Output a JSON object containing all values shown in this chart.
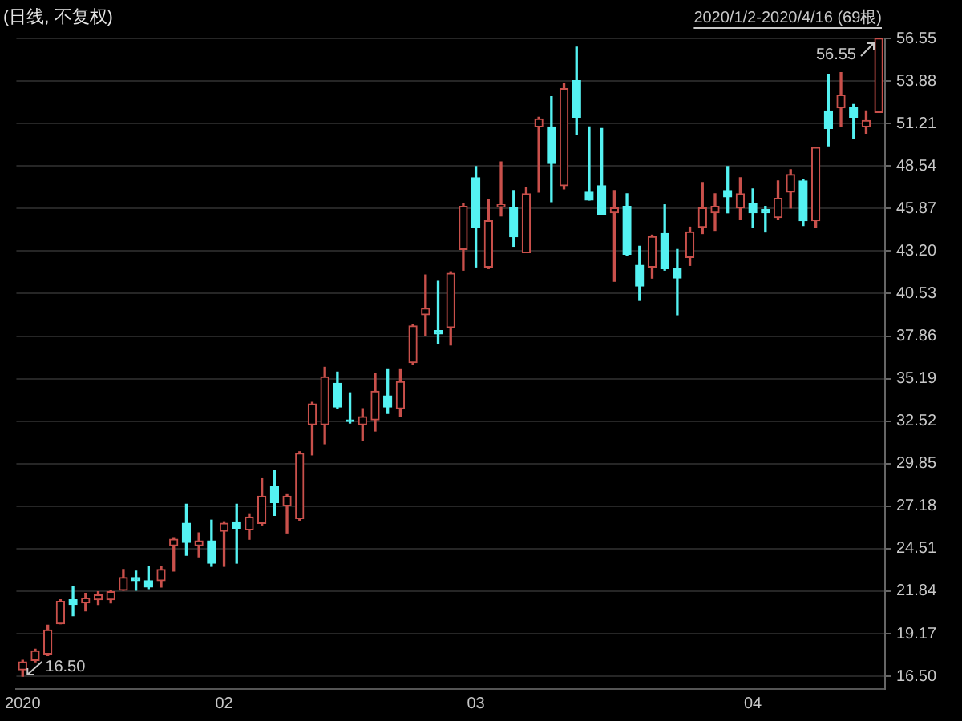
{
  "chart_data": {
    "type": "candlestick",
    "title": "(日线, 不复权)",
    "subtitle": "2020/1/2-2020/4/16 (69根)",
    "categories": [
      "2020",
      null,
      null,
      null,
      null,
      null,
      null,
      null,
      null,
      null,
      null,
      null,
      null,
      null,
      null,
      null,
      "02",
      null,
      null,
      null,
      null,
      null,
      null,
      null,
      null,
      null,
      null,
      null,
      null,
      null,
      null,
      null,
      null,
      null,
      null,
      null,
      "03",
      null,
      null,
      null,
      null,
      null,
      null,
      null,
      null,
      null,
      null,
      null,
      null,
      null,
      null,
      null,
      null,
      null,
      null,
      null,
      null,
      null,
      "04",
      null,
      null,
      null,
      null,
      null,
      null,
      null,
      null,
      null,
      null
    ],
    "ohlc": [
      [
        16.9,
        17.5,
        16.5,
        17.4
      ],
      [
        17.5,
        18.2,
        17.4,
        18.1
      ],
      [
        17.9,
        19.7,
        17.8,
        19.4
      ],
      [
        19.8,
        21.3,
        19.8,
        21.2
      ],
      [
        21.3,
        22.1,
        20.3,
        21.0
      ],
      [
        21.1,
        21.7,
        20.6,
        21.4
      ],
      [
        21.3,
        21.8,
        21.0,
        21.6
      ],
      [
        21.3,
        21.9,
        21.1,
        21.8
      ],
      [
        21.9,
        23.2,
        21.9,
        22.7
      ],
      [
        22.7,
        23.1,
        21.9,
        22.5
      ],
      [
        22.5,
        23.4,
        22.0,
        22.1
      ],
      [
        22.5,
        23.4,
        22.1,
        23.2
      ],
      [
        24.7,
        25.2,
        23.1,
        25.1
      ],
      [
        26.1,
        27.3,
        24.1,
        24.9
      ],
      [
        24.7,
        25.5,
        24.0,
        25.0
      ],
      [
        25.0,
        26.3,
        23.4,
        23.6
      ],
      [
        25.6,
        26.2,
        23.4,
        26.1
      ],
      [
        26.2,
        27.3,
        23.6,
        25.8
      ],
      [
        25.7,
        26.7,
        25.1,
        26.5
      ],
      [
        26.1,
        28.9,
        26.0,
        27.8
      ],
      [
        28.4,
        29.4,
        26.6,
        27.4
      ],
      [
        27.2,
        27.9,
        25.5,
        27.8
      ],
      [
        26.4,
        30.6,
        26.3,
        30.5
      ],
      [
        32.3,
        33.7,
        30.4,
        33.6
      ],
      [
        32.3,
        35.9,
        31.1,
        35.3
      ],
      [
        34.9,
        35.6,
        33.3,
        33.4
      ],
      [
        32.6,
        34.3,
        32.4,
        32.5
      ],
      [
        32.3,
        33.3,
        31.3,
        32.8
      ],
      [
        32.6,
        35.5,
        31.9,
        34.4
      ],
      [
        34.1,
        35.8,
        33.0,
        33.4
      ],
      [
        33.3,
        35.8,
        32.8,
        35.0
      ],
      [
        36.2,
        38.6,
        36.1,
        38.5
      ],
      [
        39.2,
        41.7,
        37.9,
        39.6
      ],
      [
        38.2,
        41.3,
        37.4,
        38.0
      ],
      [
        38.4,
        41.9,
        37.3,
        41.8
      ],
      [
        43.3,
        46.2,
        42.0,
        46.0
      ],
      [
        47.8,
        48.5,
        42.2,
        44.7
      ],
      [
        42.2,
        46.4,
        42.1,
        45.1
      ],
      [
        46.0,
        48.8,
        45.4,
        46.1
      ],
      [
        45.9,
        47.0,
        43.5,
        44.1
      ],
      [
        43.1,
        47.2,
        43.1,
        46.8
      ],
      [
        51.0,
        51.6,
        46.9,
        51.5
      ],
      [
        51.0,
        52.9,
        46.3,
        48.7
      ],
      [
        47.3,
        53.7,
        47.1,
        53.4
      ],
      [
        53.9,
        56.0,
        50.5,
        51.6
      ],
      [
        46.9,
        51.0,
        46.4,
        46.4
      ],
      [
        47.3,
        50.9,
        45.5,
        45.5
      ],
      [
        45.6,
        47.0,
        41.3,
        45.9
      ],
      [
        46.0,
        46.8,
        42.9,
        43.0
      ],
      [
        42.3,
        43.5,
        40.1,
        41.0
      ],
      [
        42.2,
        44.2,
        41.5,
        44.1
      ],
      [
        44.3,
        46.1,
        42.0,
        42.1
      ],
      [
        42.1,
        43.3,
        39.2,
        41.5
      ],
      [
        42.8,
        44.7,
        42.3,
        44.4
      ],
      [
        44.7,
        47.5,
        44.3,
        45.9
      ],
      [
        45.6,
        46.8,
        44.5,
        46.0
      ],
      [
        47.0,
        48.5,
        45.6,
        46.6
      ],
      [
        45.9,
        47.8,
        45.2,
        46.8
      ],
      [
        46.2,
        47.1,
        44.7,
        45.6
      ],
      [
        45.8,
        46.0,
        44.4,
        45.6
      ],
      [
        45.3,
        47.6,
        45.2,
        46.5
      ],
      [
        46.9,
        48.3,
        45.9,
        48.0
      ],
      [
        47.6,
        47.7,
        44.8,
        45.1
      ],
      [
        45.1,
        49.7,
        44.7,
        49.7
      ],
      [
        52.0,
        54.3,
        49.8,
        50.9
      ],
      [
        52.2,
        54.4,
        51.0,
        53.0
      ],
      [
        52.2,
        52.4,
        50.3,
        51.6
      ],
      [
        51.0,
        52.0,
        50.6,
        51.4
      ],
      [
        51.9,
        56.55,
        51.9,
        56.55
      ]
    ],
    "colors": [
      "#c9504b",
      "#c9504b",
      "#c9504b",
      "#c9504b",
      "#54f2f2",
      "#c9504b",
      "#c9504b",
      "#c9504b",
      "#c9504b",
      "#54f2f2",
      "#54f2f2",
      "#c9504b",
      "#c9504b",
      "#54f2f2",
      "#c9504b",
      "#54f2f2",
      "#c9504b",
      "#54f2f2",
      "#c9504b",
      "#c9504b",
      "#54f2f2",
      "#c9504b",
      "#c9504b",
      "#c9504b",
      "#c9504b",
      "#54f2f2",
      "#54f2f2",
      "#c9504b",
      "#c9504b",
      "#54f2f2",
      "#c9504b",
      "#c9504b",
      "#c9504b",
      "#54f2f2",
      "#c9504b",
      "#c9504b",
      "#54f2f2",
      "#c9504b",
      "#c9504b",
      "#54f2f2",
      "#c9504b",
      "#c9504b",
      "#54f2f2",
      "#c9504b",
      "#54f2f2",
      "#54f2f2",
      "#54f2f2",
      "#c9504b",
      "#54f2f2",
      "#54f2f2",
      "#c9504b",
      "#54f2f2",
      "#54f2f2",
      "#c9504b",
      "#c9504b",
      "#c9504b",
      "#54f2f2",
      "#c9504b",
      "#54f2f2",
      "#54f2f2",
      "#c9504b",
      "#c9504b",
      "#54f2f2",
      "#c9504b",
      "#54f2f2",
      "#c9504b",
      "#54f2f2",
      "#c9504b",
      "#c9504b"
    ],
    "ylim": [
      15.7,
      56.55
    ],
    "yticks": [
      {
        "value": 16.5,
        "label": "16.50"
      },
      19.17,
      21.84,
      24.51,
      27.18,
      29.85,
      32.52,
      35.19,
      37.86,
      40.53,
      {
        "value": 43.2,
        "label": "43.20"
      },
      45.87,
      48.54,
      51.21,
      53.88,
      56.55
    ],
    "grid": "y",
    "annotations": [
      {
        "text": "16.50",
        "x": "2020",
        "y": 16.5
      },
      "56.55"
    ]
  }
}
